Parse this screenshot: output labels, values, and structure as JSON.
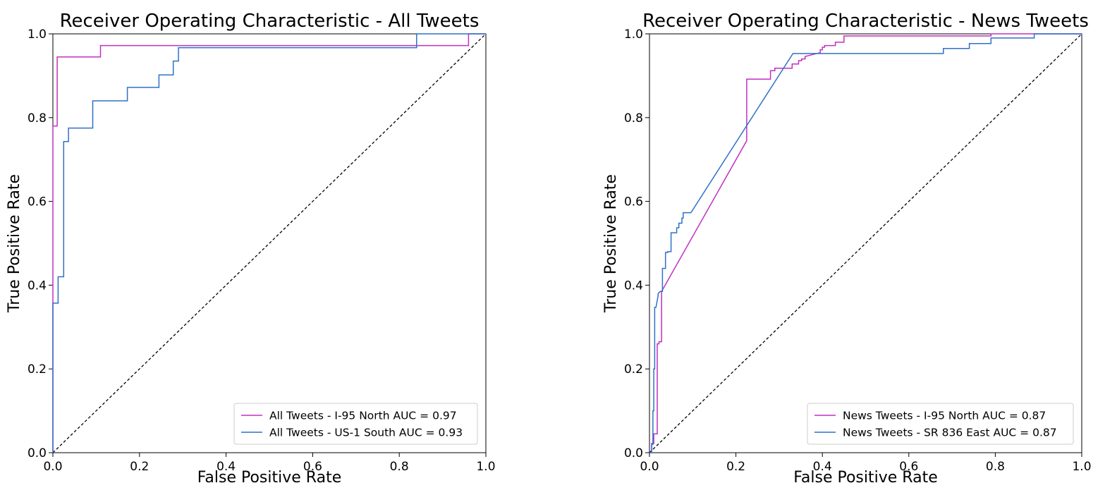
{
  "chart_data": [
    {
      "type": "line",
      "title": "Receiver Operating Characteristic - All Tweets",
      "xlabel": "False Positive Rate",
      "ylabel": "True Positive Rate",
      "xlim": [
        0,
        1
      ],
      "ylim": [
        0,
        1
      ],
      "xticks": [
        "0.0",
        "0.2",
        "0.4",
        "0.6",
        "0.8",
        "1.0"
      ],
      "yticks": [
        "0.0",
        "0.2",
        "0.4",
        "0.6",
        "0.8",
        "1.0"
      ],
      "grid": false,
      "legend_position": "lower right",
      "diagonal_reference": true,
      "series": [
        {
          "name": "All Tweets - I-95 North AUC = 0.97",
          "color": "#c030c0",
          "x": [
            0.0,
            0.0,
            0.01,
            0.01,
            0.11,
            0.11,
            0.96,
            0.96,
            1.0
          ],
          "y": [
            0.0,
            0.78,
            0.78,
            0.945,
            0.945,
            0.972,
            0.972,
            1.0,
            1.0
          ]
        },
        {
          "name": "All Tweets - US-1 South AUC = 0.93",
          "color": "#3070c8",
          "x": [
            0.0,
            0.0,
            0.012,
            0.012,
            0.025,
            0.025,
            0.036,
            0.036,
            0.092,
            0.092,
            0.172,
            0.172,
            0.245,
            0.245,
            0.278,
            0.278,
            0.29,
            0.29,
            0.84,
            0.84,
            1.0
          ],
          "y": [
            0.0,
            0.357,
            0.357,
            0.42,
            0.42,
            0.743,
            0.743,
            0.775,
            0.775,
            0.84,
            0.84,
            0.872,
            0.872,
            0.902,
            0.902,
            0.935,
            0.935,
            0.967,
            0.967,
            1.0,
            1.0
          ]
        }
      ]
    },
    {
      "type": "line",
      "title": "Receiver Operating Characteristic - News Tweets",
      "xlabel": "False Positive Rate",
      "ylabel": "True Positive Rate",
      "xlim": [
        0,
        1
      ],
      "ylim": [
        0,
        1
      ],
      "xticks": [
        "0.0",
        "0.2",
        "0.4",
        "0.6",
        "0.8",
        "1.0"
      ],
      "yticks": [
        "0.0",
        "0.2",
        "0.4",
        "0.6",
        "0.8",
        "1.0"
      ],
      "grid": false,
      "legend_position": "lower right",
      "diagonal_reference": true,
      "series": [
        {
          "name": "News Tweets - I-95 North AUC = 0.87",
          "color": "#c030c0",
          "x": [
            0.0,
            0.005,
            0.005,
            0.01,
            0.01,
            0.018,
            0.018,
            0.022,
            0.022,
            0.028,
            0.028,
            0.225,
            0.225,
            0.28,
            0.28,
            0.29,
            0.29,
            0.33,
            0.33,
            0.345,
            0.345,
            0.352,
            0.352,
            0.36,
            0.36,
            0.395,
            0.395,
            0.4,
            0.4,
            0.405,
            0.405,
            0.43,
            0.43,
            0.45,
            0.45,
            0.79,
            0.79,
            1.0
          ],
          "y": [
            0.0,
            0.0,
            0.022,
            0.022,
            0.045,
            0.045,
            0.26,
            0.26,
            0.265,
            0.265,
            0.385,
            0.745,
            0.892,
            0.892,
            0.912,
            0.912,
            0.918,
            0.918,
            0.928,
            0.928,
            0.936,
            0.936,
            0.94,
            0.94,
            0.946,
            0.955,
            0.962,
            0.962,
            0.968,
            0.968,
            0.972,
            0.972,
            0.98,
            0.98,
            0.995,
            0.995,
            1.0,
            1.0
          ]
        },
        {
          "name": "News Tweets - SR 836 East AUC = 0.87",
          "color": "#3070c8",
          "x": [
            0.0,
            0.005,
            0.005,
            0.008,
            0.008,
            0.01,
            0.01,
            0.012,
            0.012,
            0.015,
            0.02,
            0.02,
            0.025,
            0.03,
            0.03,
            0.037,
            0.037,
            0.042,
            0.042,
            0.05,
            0.05,
            0.063,
            0.063,
            0.068,
            0.068,
            0.075,
            0.075,
            0.078,
            0.078,
            0.096,
            0.332,
            0.68,
            0.68,
            0.74,
            0.74,
            0.79,
            0.79,
            0.89,
            0.89,
            1.0
          ],
          "y": [
            0.0,
            0.0,
            0.02,
            0.02,
            0.1,
            0.1,
            0.2,
            0.2,
            0.347,
            0.347,
            0.375,
            0.38,
            0.385,
            0.385,
            0.44,
            0.44,
            0.478,
            0.478,
            0.48,
            0.48,
            0.525,
            0.525,
            0.537,
            0.537,
            0.548,
            0.548,
            0.56,
            0.56,
            0.573,
            0.573,
            0.953,
            0.953,
            0.965,
            0.965,
            0.977,
            0.977,
            0.99,
            0.99,
            1.0,
            1.0
          ]
        }
      ]
    }
  ]
}
